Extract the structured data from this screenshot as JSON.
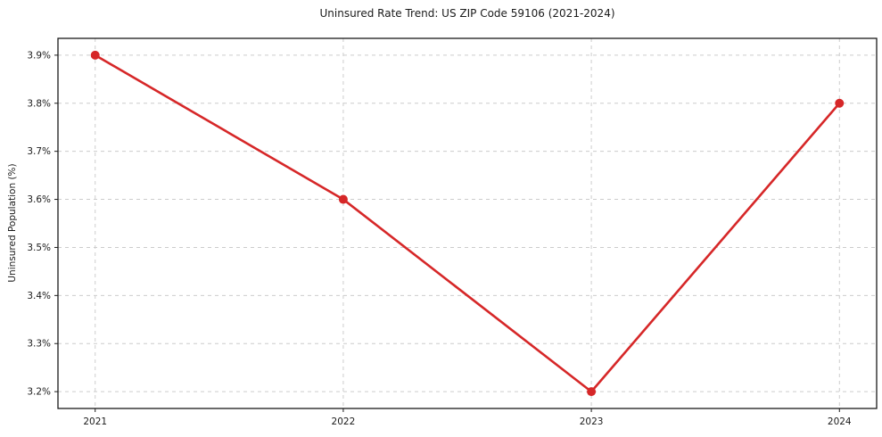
{
  "figure": {
    "background": "#ffffff"
  },
  "chart_data": {
    "type": "line",
    "title": "Uninsured Rate Trend: US ZIP Code 59106 (2021-2024)",
    "xlabel": "",
    "ylabel": "Uninsured Population (%)",
    "x": [
      2021,
      2022,
      2023,
      2024
    ],
    "xtick_labels": [
      "2021",
      "2022",
      "2023",
      "2024"
    ],
    "series": [
      {
        "name": "Uninsured rate",
        "values": [
          3.9,
          3.6,
          3.2,
          3.8
        ],
        "color": "#d62728",
        "marker": "circle"
      }
    ],
    "yticks": [
      3.2,
      3.3,
      3.4,
      3.5,
      3.6,
      3.7,
      3.8,
      3.9
    ],
    "ytick_labels": [
      "3.2%",
      "3.3%",
      "3.4%",
      "3.5%",
      "3.6%",
      "3.7%",
      "3.8%",
      "3.9%"
    ],
    "ylim": [
      3.165,
      3.935
    ],
    "xlim": [
      2020.85,
      2024.15
    ],
    "grid": true,
    "grid_color": "#cccccc",
    "axis_color": "#1a1a1a",
    "legend_position": "none"
  }
}
